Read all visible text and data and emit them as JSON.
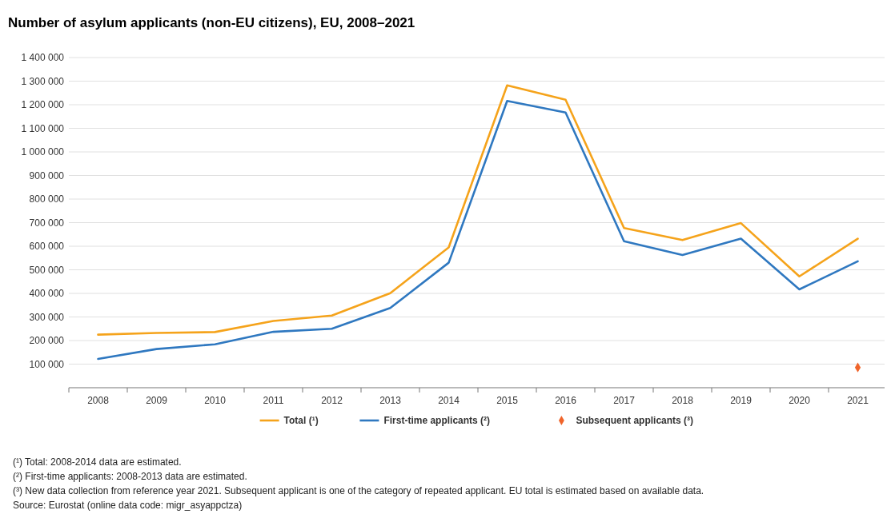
{
  "chart_data": {
    "type": "line",
    "title": "Number of asylum applicants (non-EU citizens), EU, 2008–2021",
    "categories": [
      "2008",
      "2009",
      "2010",
      "2011",
      "2012",
      "2013",
      "2014",
      "2015",
      "2016",
      "2017",
      "2018",
      "2019",
      "2020",
      "2021"
    ],
    "series": [
      {
        "name": "Total (¹)",
        "color": "#f5a31b",
        "values": [
          225000,
          232000,
          236000,
          283000,
          306000,
          401000,
          595000,
          1282000,
          1221000,
          677000,
          626000,
          698000,
          472000,
          632000
        ]
      },
      {
        "name": "First-time applicants (²)",
        "color": "#2f78c0",
        "values": [
          122000,
          164000,
          184000,
          237000,
          250000,
          338000,
          530000,
          1216000,
          1167000,
          621000,
          563000,
          632000,
          417000,
          536000
        ]
      },
      {
        "name": "Subsequent applicants (³)",
        "type": "scatter",
        "marker": "diamond",
        "color": "#f0642a",
        "values": [
          null,
          null,
          null,
          null,
          null,
          null,
          null,
          null,
          null,
          null,
          null,
          null,
          null,
          86000
        ]
      }
    ],
    "ylim": [
      0,
      1400000
    ],
    "yticks": [
      {
        "value": 100000,
        "label": "100 000"
      },
      {
        "value": 200000,
        "label": "200 000"
      },
      {
        "value": 300000,
        "label": "300 000"
      },
      {
        "value": 400000,
        "label": "400 000"
      },
      {
        "value": 500000,
        "label": "500 000"
      },
      {
        "value": 600000,
        "label": "600 000"
      },
      {
        "value": 700000,
        "label": "700 000"
      },
      {
        "value": 800000,
        "label": "800 000"
      },
      {
        "value": 900000,
        "label": "900 000"
      },
      {
        "value": 1000000,
        "label": "1 000 000"
      },
      {
        "value": 1100000,
        "label": "1 100 000"
      },
      {
        "value": 1200000,
        "label": "1 200 000"
      },
      {
        "value": 1300000,
        "label": "1 300 000"
      },
      {
        "value": 1400000,
        "label": "1 400 000"
      }
    ],
    "grid": "y",
    "legend": "bottom",
    "annotations": [
      "(¹) Total: 2008-2014 data are estimated.",
      "(²) First-time applicants: 2008-2013 data are estimated.",
      "(³) New data collection from reference year 2021. Subsequent applicant is one of the category of repeated applicant. EU total is estimated based on available data.",
      "Source: Eurostat (online data code: migr_asyappctza)"
    ]
  }
}
